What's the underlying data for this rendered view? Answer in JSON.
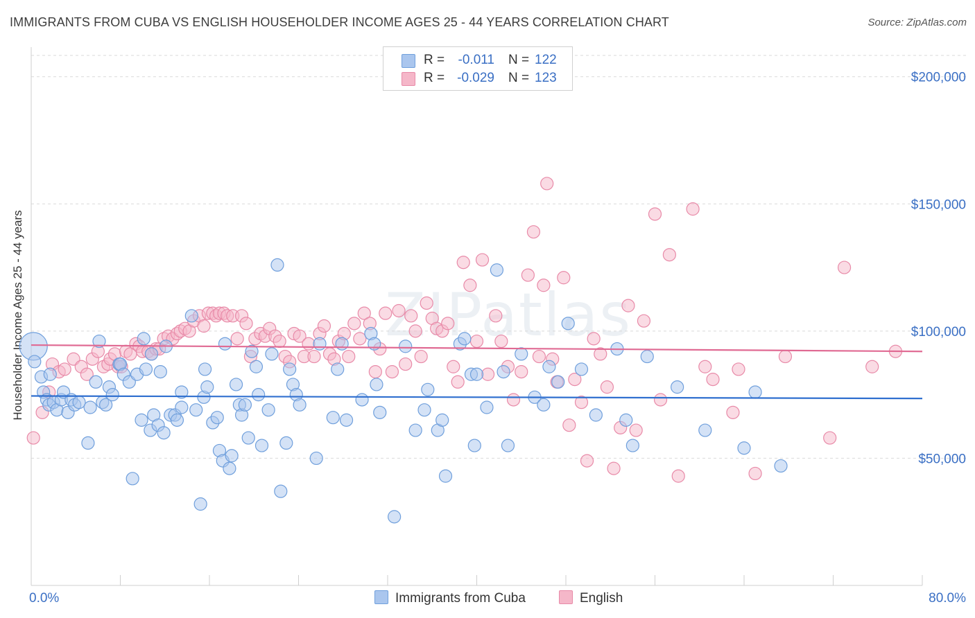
{
  "header": {
    "title": "IMMIGRANTS FROM CUBA VS ENGLISH HOUSEHOLDER INCOME AGES 25 - 44 YEARS CORRELATION CHART",
    "source": "Source: ZipAtlas.com"
  },
  "watermark": "ZIPatlas",
  "legend": {
    "rows": [
      {
        "r_label": "R =",
        "r_value": "-0.011",
        "n_label": "N =",
        "n_value": "122"
      },
      {
        "r_label": "R =",
        "r_value": "-0.029",
        "n_label": "N =",
        "n_value": "123"
      }
    ],
    "bottom": [
      "Immigrants from Cuba",
      "English"
    ]
  },
  "colors": {
    "blue_fill": "#aac6ee",
    "blue_stroke": "#6f9fdc",
    "blue_line": "#2f6fcf",
    "pink_fill": "#f5b7c9",
    "pink_stroke": "#e88aa8",
    "pink_line": "#e06a93",
    "axis_text": "#3a6fc4",
    "grid": "#d9d9d9"
  },
  "chart_data": {
    "type": "scatter",
    "title": "IMMIGRANTS FROM CUBA VS ENGLISH HOUSEHOLDER INCOME AGES 25 - 44 YEARS CORRELATION CHART",
    "xlabel": "",
    "ylabel": "Householder Income Ages 25 - 44 years",
    "xlim": [
      0,
      80
    ],
    "ylim": [
      0,
      210000
    ],
    "x_tick_labels": [
      "0.0%",
      "80.0%"
    ],
    "y_ticks": [
      50000,
      100000,
      150000,
      200000
    ],
    "y_tick_labels": [
      "$50,000",
      "$100,000",
      "$150,000",
      "$200,000"
    ],
    "grid": true,
    "legend_position": "top-center",
    "series": [
      {
        "name": "Immigrants from Cuba",
        "trend": [
          [
            0,
            74500
          ],
          [
            80,
            73500
          ]
        ],
        "points": [
          [
            0.2,
            94,
            "big"
          ],
          [
            0.3,
            88
          ],
          [
            0.9,
            82
          ],
          [
            1.1,
            76
          ],
          [
            1.4,
            73
          ],
          [
            1.6,
            71
          ],
          [
            1.7,
            83
          ],
          [
            2.0,
            72
          ],
          [
            2.3,
            69
          ],
          [
            2.7,
            73
          ],
          [
            2.9,
            76
          ],
          [
            3.3,
            68
          ],
          [
            3.6,
            73
          ],
          [
            3.9,
            71
          ],
          [
            4.3,
            72
          ],
          [
            5.1,
            56
          ],
          [
            5.3,
            70
          ],
          [
            5.8,
            80
          ],
          [
            6.1,
            96
          ],
          [
            6.4,
            72
          ],
          [
            6.7,
            71
          ],
          [
            7.0,
            78
          ],
          [
            7.3,
            75
          ],
          [
            7.9,
            87
          ],
          [
            8.0,
            87
          ],
          [
            8.3,
            83
          ],
          [
            8.8,
            80
          ],
          [
            9.1,
            42
          ],
          [
            9.5,
            83
          ],
          [
            9.9,
            65
          ],
          [
            10.1,
            97
          ],
          [
            10.3,
            85
          ],
          [
            10.7,
            61
          ],
          [
            10.8,
            91
          ],
          [
            11.0,
            67
          ],
          [
            11.4,
            63
          ],
          [
            11.6,
            84
          ],
          [
            11.9,
            60
          ],
          [
            12.1,
            94
          ],
          [
            12.5,
            67
          ],
          [
            12.9,
            67
          ],
          [
            13.1,
            65
          ],
          [
            13.5,
            76
          ],
          [
            13.5,
            70
          ],
          [
            14.4,
            106
          ],
          [
            14.8,
            69
          ],
          [
            15.2,
            32
          ],
          [
            15.5,
            74
          ],
          [
            15.6,
            85
          ],
          [
            15.8,
            78
          ],
          [
            16.3,
            64
          ],
          [
            16.7,
            66
          ],
          [
            16.9,
            53
          ],
          [
            17.2,
            49
          ],
          [
            17.4,
            95
          ],
          [
            17.8,
            46
          ],
          [
            18.0,
            51
          ],
          [
            18.4,
            79
          ],
          [
            18.7,
            71
          ],
          [
            18.9,
            67
          ],
          [
            19.2,
            71
          ],
          [
            19.5,
            58
          ],
          [
            19.8,
            92
          ],
          [
            20.2,
            86
          ],
          [
            20.4,
            75
          ],
          [
            20.7,
            55
          ],
          [
            21.3,
            69
          ],
          [
            21.6,
            91
          ],
          [
            22.1,
            126
          ],
          [
            22.4,
            37
          ],
          [
            22.9,
            56
          ],
          [
            23.2,
            85
          ],
          [
            23.5,
            79
          ],
          [
            23.8,
            75
          ],
          [
            24.1,
            71
          ],
          [
            25.6,
            50
          ],
          [
            25.9,
            95
          ],
          [
            27.1,
            66
          ],
          [
            27.5,
            85
          ],
          [
            27.9,
            95
          ],
          [
            28.3,
            65
          ],
          [
            29.7,
            73
          ],
          [
            30.5,
            99
          ],
          [
            30.8,
            95
          ],
          [
            31.0,
            79
          ],
          [
            31.3,
            68
          ],
          [
            32.6,
            27
          ],
          [
            33.6,
            94
          ],
          [
            34.5,
            61
          ],
          [
            35.3,
            69
          ],
          [
            35.6,
            77
          ],
          [
            36.5,
            61
          ],
          [
            36.9,
            65
          ],
          [
            37.2,
            43
          ],
          [
            38.5,
            95
          ],
          [
            38.9,
            97
          ],
          [
            39.5,
            83
          ],
          [
            39.8,
            55
          ],
          [
            40.0,
            83
          ],
          [
            40.9,
            70
          ],
          [
            41.8,
            124
          ],
          [
            42.4,
            84
          ],
          [
            42.8,
            55
          ],
          [
            44.0,
            91
          ],
          [
            45.2,
            74
          ],
          [
            46.0,
            71
          ],
          [
            46.5,
            86
          ],
          [
            47.3,
            80
          ],
          [
            48.2,
            103
          ],
          [
            49.4,
            85
          ],
          [
            50.7,
            67
          ],
          [
            52.6,
            93
          ],
          [
            53.4,
            65
          ],
          [
            54.0,
            55
          ],
          [
            55.3,
            90
          ],
          [
            58.0,
            78
          ],
          [
            60.5,
            61
          ],
          [
            64.0,
            54
          ],
          [
            65.0,
            76
          ],
          [
            67.3,
            47
          ]
        ]
      },
      {
        "name": "English",
        "trend": [
          [
            0,
            94500
          ],
          [
            80,
            92000
          ]
        ],
        "points": [
          [
            0.2,
            58
          ],
          [
            1.0,
            68
          ],
          [
            1.6,
            76
          ],
          [
            1.9,
            87
          ],
          [
            2.5,
            84
          ],
          [
            3.0,
            85
          ],
          [
            3.8,
            89
          ],
          [
            4.5,
            86
          ],
          [
            5.0,
            83
          ],
          [
            5.5,
            89
          ],
          [
            6.0,
            92
          ],
          [
            6.5,
            86
          ],
          [
            6.9,
            87
          ],
          [
            7.1,
            89
          ],
          [
            7.5,
            91
          ],
          [
            7.8,
            86
          ],
          [
            8.1,
            86
          ],
          [
            8.5,
            92
          ],
          [
            8.9,
            91
          ],
          [
            9.4,
            95
          ],
          [
            9.7,
            94
          ],
          [
            10.0,
            92
          ],
          [
            10.5,
            92
          ],
          [
            10.8,
            91
          ],
          [
            11.2,
            93
          ],
          [
            11.5,
            93
          ],
          [
            11.9,
            97
          ],
          [
            12.3,
            98
          ],
          [
            12.7,
            97
          ],
          [
            13.1,
            99
          ],
          [
            13.4,
            100
          ],
          [
            13.8,
            101
          ],
          [
            14.2,
            100
          ],
          [
            14.6,
            104
          ],
          [
            15.1,
            106
          ],
          [
            15.5,
            102
          ],
          [
            15.9,
            107
          ],
          [
            16.3,
            107
          ],
          [
            16.6,
            106
          ],
          [
            16.9,
            107
          ],
          [
            17.3,
            107
          ],
          [
            17.6,
            106
          ],
          [
            18.1,
            106
          ],
          [
            18.5,
            97
          ],
          [
            18.9,
            106
          ],
          [
            19.3,
            103
          ],
          [
            19.7,
            90
          ],
          [
            20.1,
            97
          ],
          [
            20.6,
            99
          ],
          [
            21.0,
            98
          ],
          [
            21.4,
            101
          ],
          [
            21.9,
            98
          ],
          [
            22.3,
            96
          ],
          [
            22.8,
            90
          ],
          [
            23.2,
            88
          ],
          [
            23.6,
            99
          ],
          [
            24.1,
            98
          ],
          [
            24.5,
            90
          ],
          [
            24.9,
            95
          ],
          [
            25.4,
            90
          ],
          [
            25.9,
            99
          ],
          [
            26.3,
            102
          ],
          [
            26.8,
            91
          ],
          [
            27.2,
            89
          ],
          [
            27.6,
            96
          ],
          [
            28.1,
            99
          ],
          [
            28.5,
            90
          ],
          [
            29.0,
            103
          ],
          [
            29.5,
            97
          ],
          [
            29.9,
            107
          ],
          [
            30.4,
            103
          ],
          [
            30.9,
            84
          ],
          [
            31.3,
            93
          ],
          [
            31.8,
            107
          ],
          [
            32.4,
            84
          ],
          [
            33.0,
            108
          ],
          [
            33.6,
            87
          ],
          [
            34.1,
            106
          ],
          [
            34.5,
            100
          ],
          [
            35.0,
            90
          ],
          [
            35.5,
            111
          ],
          [
            36.0,
            105
          ],
          [
            36.4,
            101
          ],
          [
            36.9,
            100
          ],
          [
            37.4,
            103
          ],
          [
            37.9,
            86
          ],
          [
            38.3,
            80
          ],
          [
            38.8,
            127
          ],
          [
            39.4,
            118
          ],
          [
            40.0,
            96
          ],
          [
            40.5,
            128
          ],
          [
            41.0,
            83
          ],
          [
            41.7,
            106
          ],
          [
            42.2,
            96
          ],
          [
            42.8,
            86
          ],
          [
            43.3,
            73
          ],
          [
            44.0,
            84
          ],
          [
            44.6,
            122
          ],
          [
            45.1,
            139
          ],
          [
            45.6,
            90
          ],
          [
            46.0,
            118
          ],
          [
            46.3,
            158
          ],
          [
            46.8,
            89
          ],
          [
            47.2,
            80
          ],
          [
            47.8,
            121
          ],
          [
            48.3,
            63
          ],
          [
            48.8,
            81
          ],
          [
            49.4,
            72
          ],
          [
            49.9,
            49
          ],
          [
            50.5,
            97
          ],
          [
            51.1,
            91
          ],
          [
            51.7,
            78
          ],
          [
            52.3,
            46
          ],
          [
            52.9,
            62
          ],
          [
            53.6,
            110
          ],
          [
            54.3,
            61
          ],
          [
            55.0,
            104
          ],
          [
            56.0,
            146
          ],
          [
            56.5,
            73
          ],
          [
            57.3,
            130
          ],
          [
            58.1,
            43
          ],
          [
            59.4,
            148
          ],
          [
            60.5,
            86
          ],
          [
            61.2,
            81
          ],
          [
            63.0,
            68
          ],
          [
            63.5,
            85
          ],
          [
            65.0,
            44
          ],
          [
            67.7,
            90
          ],
          [
            71.7,
            58
          ],
          [
            73.0,
            125
          ],
          [
            75.5,
            86
          ],
          [
            77.6,
            92
          ]
        ]
      }
    ]
  }
}
